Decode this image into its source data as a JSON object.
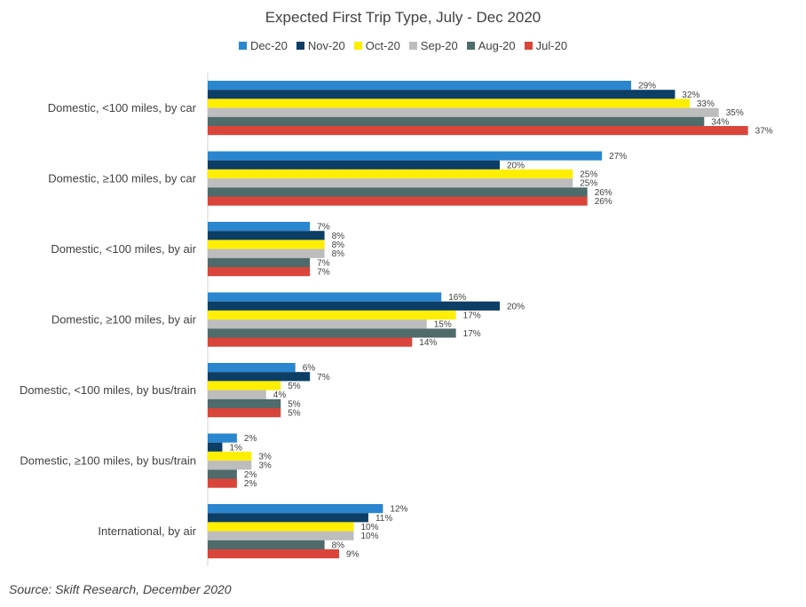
{
  "chart_data": {
    "type": "bar",
    "orientation": "horizontal",
    "title": "Expected First Trip Type, July - Dec 2020",
    "categories": [
      "Domestic, <100 miles, by car",
      "Domestic, ≥100 miles, by car",
      "Domestic, <100 miles, by air",
      "Domestic, ≥100 miles, by air",
      "Domestic, <100 miles, by bus/train",
      "Domestic, ≥100 miles, by bus/train",
      "International, by air"
    ],
    "series": [
      {
        "name": "Dec-20",
        "color": "#2b86d0",
        "values": [
          29,
          27,
          7,
          16,
          6,
          2,
          12
        ]
      },
      {
        "name": "Nov-20",
        "color": "#0c3e66",
        "values": [
          32,
          20,
          8,
          20,
          7,
          1,
          11
        ]
      },
      {
        "name": "Oct-20",
        "color": "#ffee00",
        "values": [
          33,
          25,
          8,
          17,
          5,
          3,
          10
        ]
      },
      {
        "name": "Sep-20",
        "color": "#bdbdbd",
        "values": [
          35,
          25,
          8,
          15,
          4,
          3,
          10
        ]
      },
      {
        "name": "Aug-20",
        "color": "#4f6b6b",
        "values": [
          34,
          26,
          7,
          17,
          5,
          2,
          8
        ]
      },
      {
        "name": "Jul-20",
        "color": "#d9453a",
        "values": [
          37,
          26,
          7,
          14,
          5,
          2,
          9
        ]
      }
    ],
    "value_suffix": "%",
    "xlim": [
      0,
      40
    ],
    "legend": "top-center",
    "grid": false,
    "data_labels": true
  },
  "source": "Source: Skift Research, December 2020"
}
